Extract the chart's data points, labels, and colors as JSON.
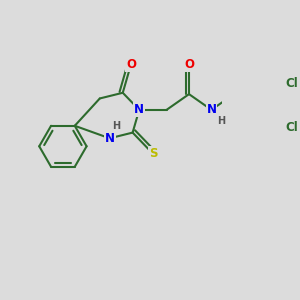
{
  "background_color": "#dcdcdc",
  "bond_color": "#2d6b2d",
  "bond_width": 1.5,
  "atom_colors": {
    "N": "#0000ee",
    "O": "#ee0000",
    "S": "#bbbb00",
    "Cl": "#2d6b2d",
    "H": "#555555"
  },
  "font_size": 8.5
}
